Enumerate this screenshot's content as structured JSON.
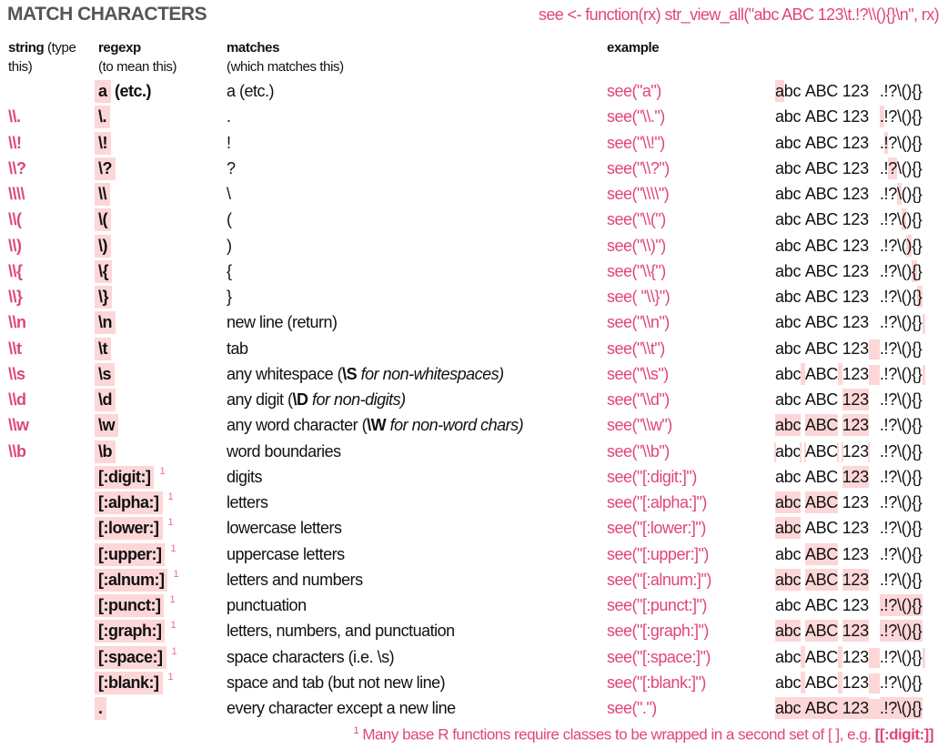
{
  "title": "MATCH CHARACTERS",
  "function_def": "see <- function(rx) str_view_all(\"abc ABC 123\\t.!?\\\\(){}\\n\", rx)",
  "headers": {
    "string": "string",
    "string_sub1": " (type",
    "string_sub2": "this)",
    "regexp": "regexp",
    "regexp_sub": "(to mean this)",
    "matches": "matches",
    "matches_sub": "(which matches this)",
    "example": "example"
  },
  "colors": {
    "accent": "#e0457b",
    "highlight": "#fdd6d8",
    "title": "#555555"
  },
  "sample_chars": [
    "a",
    "b",
    "c",
    " ",
    "A",
    "B",
    "C",
    " ",
    "1",
    "2",
    "3",
    "\t",
    ".",
    "!",
    "?",
    "\\",
    "(",
    ")",
    "{",
    "}",
    "\n"
  ],
  "rows": [
    {
      "string": "",
      "regexp": "a",
      "regexp_suffix": " (etc.)",
      "matches": "a (etc.)",
      "example": "see(\"a\")",
      "hl": [
        0
      ]
    },
    {
      "string": "\\\\.",
      "regexp": "\\.",
      "matches": ".",
      "example": "see(\"\\\\.\")",
      "hl": [
        12
      ]
    },
    {
      "string": "\\\\!",
      "regexp": "\\!",
      "matches": "!",
      "example": "see(\"\\\\!\")",
      "hl": [
        13
      ]
    },
    {
      "string": "\\\\?",
      "regexp": "\\?",
      "matches": "?",
      "example": "see(\"\\\\?\")",
      "hl": [
        14
      ]
    },
    {
      "string": "\\\\\\\\",
      "regexp": "\\\\",
      "matches": "\\",
      "example": "see(\"\\\\\\\\\")",
      "hl": [
        15
      ]
    },
    {
      "string": "\\\\(",
      "regexp": "\\(",
      "matches": "(",
      "example": "see(\"\\\\(\")",
      "hl": [
        16
      ]
    },
    {
      "string": "\\\\)",
      "regexp": "\\)",
      "matches": ")",
      "example": "see(\"\\\\)\")",
      "hl": [
        17
      ]
    },
    {
      "string": "\\\\{",
      "regexp": "\\{",
      "matches": "{",
      "example": "see(\"\\\\{\")",
      "hl": [
        18
      ]
    },
    {
      "string": "\\\\}",
      "regexp": "\\}",
      "matches": "}",
      "example": "see( \"\\\\}\")",
      "hl": [
        19
      ]
    },
    {
      "string": "\\\\n",
      "regexp": "\\n",
      "matches": "new line (return)",
      "example": "see(\"\\\\n\")",
      "hl": [
        20
      ]
    },
    {
      "string": "\\\\t",
      "regexp": "\\t",
      "matches": "tab",
      "example": "see(\"\\\\t\")",
      "hl": [
        11
      ]
    },
    {
      "string": "\\\\s",
      "regexp": "\\s",
      "matches": "any whitespace  ",
      "note_open": "(",
      "note_bold": "\\S",
      "note_italic": " for non-whitespaces)",
      "example": "see(\"\\\\s\")",
      "hl": [
        3,
        7,
        11,
        20
      ]
    },
    {
      "string": "\\\\d",
      "regexp": "\\d",
      "matches": "any digit  ",
      "note_open": "(",
      "note_bold": "\\D",
      "note_italic": " for non-digits)",
      "example": "see(\"\\\\d\")",
      "hl": [
        8,
        9,
        10
      ]
    },
    {
      "string": "\\\\w",
      "regexp": "\\w",
      "matches": "any word character  ",
      "note_open": "(",
      "note_bold": "\\W",
      "note_italic": " for non-word chars)",
      "example": "see(\"\\\\w\")",
      "hl": [
        0,
        1,
        2,
        4,
        5,
        6,
        8,
        9,
        10
      ]
    },
    {
      "string": "\\\\b",
      "regexp": "\\b",
      "matches": "word boundaries",
      "example": "see(\"\\\\b\")",
      "hl": [],
      "boundaries": [
        0,
        3,
        4,
        7,
        8,
        11
      ]
    },
    {
      "string": "",
      "regexp": "[:digit:]",
      "sup": "1",
      "matches": "digits",
      "example": "see(\"[:digit:]\")",
      "hl": [
        8,
        9,
        10
      ]
    },
    {
      "string": "",
      "regexp": "[:alpha:]",
      "sup": "1",
      "matches": "letters",
      "example": "see(\"[:alpha:]\")",
      "hl": [
        0,
        1,
        2,
        4,
        5,
        6
      ]
    },
    {
      "string": "",
      "regexp": "[:lower:]",
      "sup": "1",
      "matches": "lowercase letters",
      "example": "see(\"[:lower:]\")",
      "hl": [
        0,
        1,
        2
      ]
    },
    {
      "string": "",
      "regexp": "[:upper:]",
      "sup": "1",
      "matches": "uppercase letters",
      "example": "see(\"[:upper:]\")",
      "hl": [
        4,
        5,
        6
      ]
    },
    {
      "string": "",
      "regexp": "[:alnum:]",
      "sup": "1",
      "matches": "letters and numbers",
      "example": "see(\"[:alnum:]\")",
      "hl": [
        0,
        1,
        2,
        4,
        5,
        6,
        8,
        9,
        10
      ]
    },
    {
      "string": "",
      "regexp": "[:punct:]",
      "sup": "1",
      "matches": "punctuation",
      "example": "see(\"[:punct:]\")",
      "hl": [
        12,
        13,
        14,
        15,
        16,
        17,
        18,
        19
      ]
    },
    {
      "string": "",
      "regexp": "[:graph:]",
      "sup": "1",
      "matches": "letters, numbers, and punctuation",
      "example": "see(\"[:graph:]\")",
      "hl": [
        0,
        1,
        2,
        4,
        5,
        6,
        8,
        9,
        10,
        12,
        13,
        14,
        15,
        16,
        17,
        18,
        19
      ]
    },
    {
      "string": "",
      "regexp": "[:space:]",
      "sup": "1",
      "matches": "space characters (i.e. \\s)",
      "example": "see(\"[:space:]\")",
      "hl": [
        3,
        7,
        11,
        20
      ]
    },
    {
      "string": "",
      "regexp": "[:blank:]",
      "sup": "1",
      "matches": "space and tab (but not new line)",
      "example": "see(\"[:blank:]\")",
      "hl": [
        3,
        7,
        11
      ]
    },
    {
      "string": "",
      "regexp": ".",
      "matches": "every character except a new line",
      "example": "see(\".\")",
      "hl": [
        0,
        1,
        2,
        3,
        4,
        5,
        6,
        7,
        8,
        9,
        10,
        11,
        12,
        13,
        14,
        15,
        16,
        17,
        18,
        19
      ]
    }
  ],
  "footnote": {
    "mark": "1",
    "text": " Many base R functions require classes to be wrapped in a second set of [ ], e.g.  ",
    "code": "[[:digit:]]"
  }
}
